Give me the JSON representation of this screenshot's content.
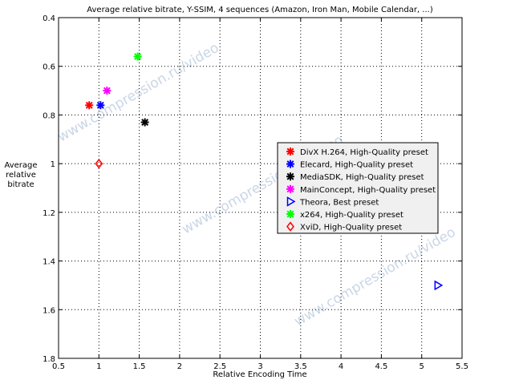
{
  "chart_data": {
    "type": "scatter",
    "title": "Average relative bitrate, Y-SSIM, 4 sequences (Amazon, Iron Man, Mobile Calendar, ...)",
    "xlabel": "Relative Encoding Time",
    "ylabel_lines": [
      "Average",
      "relative",
      "bitrate"
    ],
    "xlim": [
      0.5,
      5.5
    ],
    "ylim": [
      0.4,
      1.8
    ],
    "y_reversed": true,
    "grid": true,
    "legend_position": "right",
    "x_ticks": [
      "0.5",
      "1",
      "1.5",
      "2",
      "2.5",
      "3",
      "3.5",
      "4",
      "4.5",
      "5",
      "5.5"
    ],
    "y_ticks": [
      "0.4",
      "0.6",
      "0.8",
      "1",
      "1.2",
      "1.4",
      "1.6",
      "1.8"
    ],
    "series": [
      {
        "name": "DivX H.264, High-Quality preset",
        "color": "#ff0000",
        "marker": "asterisk",
        "x": 0.88,
        "y": 0.76
      },
      {
        "name": "Elecard, High-Quality preset",
        "color": "#0000ff",
        "marker": "asterisk",
        "x": 1.02,
        "y": 0.76
      },
      {
        "name": "MediaSDK, High-Quality preset",
        "color": "#000000",
        "marker": "asterisk",
        "x": 1.57,
        "y": 0.83
      },
      {
        "name": "MainConcept, High-Quality preset",
        "color": "#ff00ff",
        "marker": "asterisk",
        "x": 1.1,
        "y": 0.7
      },
      {
        "name": "Theora, Best preset",
        "color": "#0000ff",
        "marker": "triangle-right",
        "x": 5.2,
        "y": 1.5
      },
      {
        "name": "x264, High-Quality preset",
        "color": "#00ff00",
        "marker": "asterisk",
        "x": 1.48,
        "y": 0.56
      },
      {
        "name": "XviD, High-Quality preset",
        "color": "#ff0000",
        "marker": "diamond",
        "x": 1.0,
        "y": 1.0
      }
    ],
    "watermark": "www.compression.ru/video"
  }
}
